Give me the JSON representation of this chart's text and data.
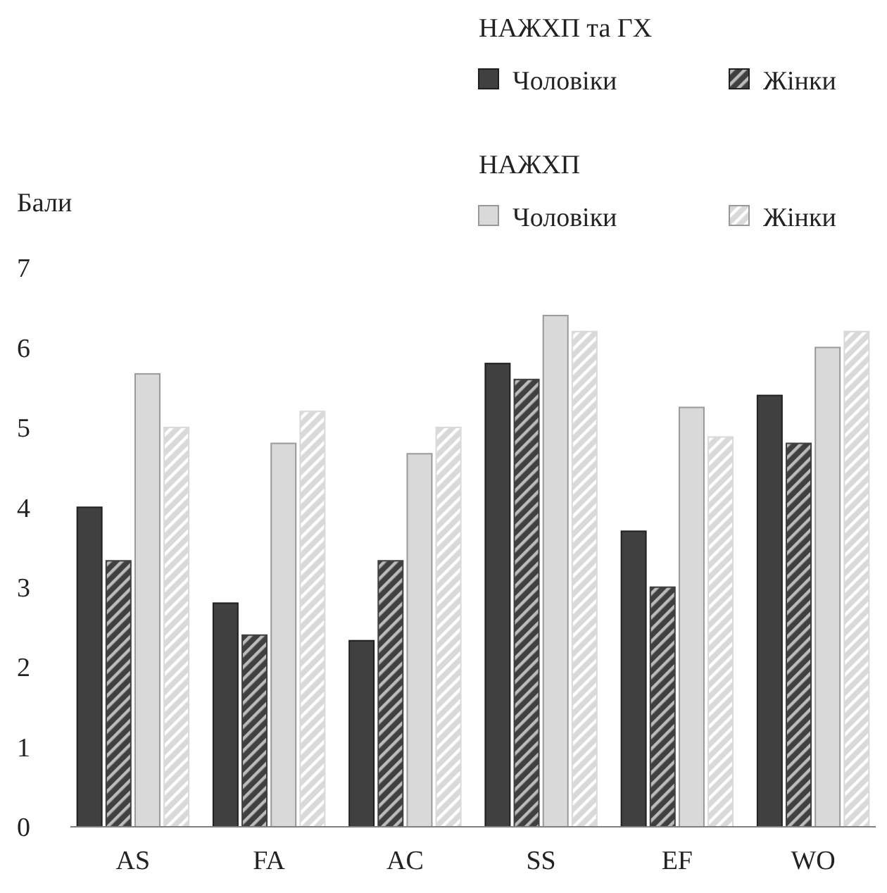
{
  "chart_data": {
    "type": "bar",
    "ylabel": "Бали",
    "categories": [
      "AS",
      "FA",
      "AC",
      "SS",
      "EF",
      "WO"
    ],
    "series": [
      {
        "name": "Чоловіки",
        "color": "#404040",
        "values": [
          4.0,
          2.8,
          2.33,
          5.8,
          3.7,
          5.4
        ]
      },
      {
        "name": "Жінки",
        "color": "#404040",
        "values": [
          3.33,
          2.4,
          3.33,
          5.6,
          3.0,
          4.8
        ]
      },
      {
        "name": "Чоловіки",
        "color": "#d9d9d9",
        "values": [
          5.67,
          4.8,
          4.67,
          6.4,
          5.25,
          6.0
        ]
      },
      {
        "name": "Жінки",
        "color": "#d9d9d9",
        "values": [
          5.0,
          5.2,
          5.0,
          6.2,
          4.88,
          6.2
        ]
      }
    ],
    "annotations": [
      "НАЖХП та ГХ",
      "НАЖХП"
    ],
    "ylim": [
      0,
      7
    ],
    "yticks": [
      0,
      1,
      2,
      3,
      4,
      5,
      6,
      7
    ],
    "legend": "top right"
  }
}
